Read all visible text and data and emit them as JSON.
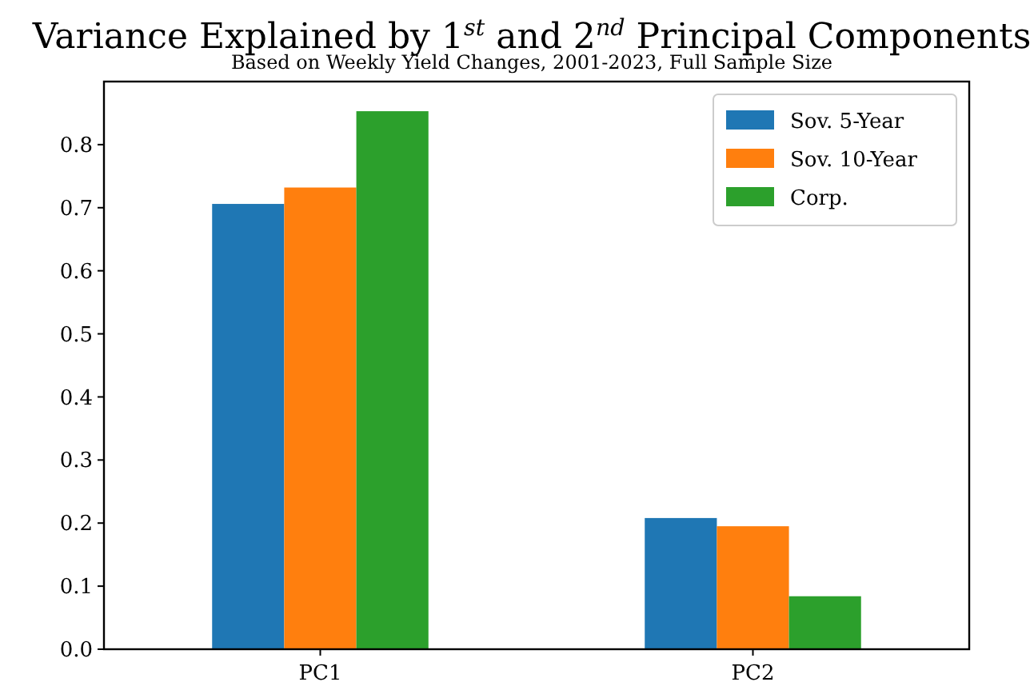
{
  "chart_data": {
    "type": "bar",
    "title": "Variance Explained by 1$^{st}$ and 2$^{nd}$ Principal Components",
    "subtitle": "Based on Weekly Yield Changes, 2001-2023, Full Sample Size",
    "categories": [
      "PC1",
      "PC2"
    ],
    "series": [
      {
        "name": "Sov. 5-Year",
        "color": "#1f77b4",
        "values": [
          0.706,
          0.208
        ]
      },
      {
        "name": "Sov. 10-Year",
        "color": "#ff7f0e",
        "values": [
          0.732,
          0.195
        ]
      },
      {
        "name": "Corp.",
        "color": "#2ca02c",
        "values": [
          0.853,
          0.084
        ]
      }
    ],
    "ylim": [
      0,
      0.9
    ],
    "yticks": [
      {
        "value": 0,
        "label": "0.0"
      },
      0.1,
      0.2,
      0.3,
      0.4,
      0.5,
      0.6,
      0.7,
      0.8
    ],
    "grid": false,
    "legend": "top right"
  }
}
